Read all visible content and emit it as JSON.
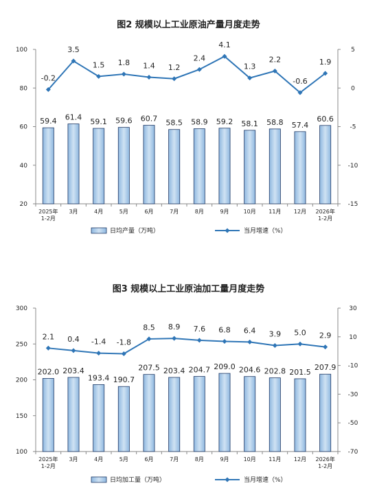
{
  "chart_data": [
    {
      "type": "bar",
      "title": "图2 规模以上工业原油产量月度走势",
      "categories": [
        [
          "2025年",
          "1-2月"
        ],
        [
          "3月"
        ],
        [
          "4月"
        ],
        [
          "5月"
        ],
        [
          "6月"
        ],
        [
          "7月"
        ],
        [
          "8月"
        ],
        [
          "9月"
        ],
        [
          "10月"
        ],
        [
          "11月"
        ],
        [
          "12月"
        ],
        [
          "2026年",
          "1-2月"
        ]
      ],
      "series": [
        {
          "name": "日均产量（万吨）",
          "type": "bar",
          "axis": "left",
          "values": [
            59.4,
            61.4,
            59.1,
            59.6,
            60.7,
            58.5,
            58.9,
            59.2,
            58.1,
            58.8,
            57.4,
            60.6
          ],
          "labels": [
            "59.4",
            "61.4",
            "59.1",
            "59.6",
            "60.7",
            "58.5",
            "58.9",
            "59.2",
            "58.1",
            "58.8",
            "57.4",
            "60.6"
          ]
        },
        {
          "name": "当月增速（%）",
          "type": "line",
          "axis": "right",
          "values": [
            -0.2,
            3.5,
            1.5,
            1.8,
            1.4,
            1.2,
            2.4,
            4.1,
            1.3,
            2.2,
            -0.6,
            1.9
          ],
          "labels": [
            "-0.2",
            "3.5",
            "1.5",
            "1.8",
            "1.4",
            "1.2",
            "2.4",
            "4.1",
            "1.3",
            "2.2",
            "-0.6",
            "1.9"
          ]
        }
      ],
      "ylim_left": [
        20,
        100
      ],
      "yticks_left": [
        "20",
        "40",
        "60",
        "80",
        "100"
      ],
      "ylim_right": [
        -15,
        5
      ],
      "yticks_right": [
        "-15",
        "-10",
        "-5",
        "0",
        "5"
      ],
      "grid": false,
      "legend_position": "bottom"
    },
    {
      "type": "bar",
      "title": "图3 规模以上工业原油加工量月度走势",
      "categories": [
        [
          "2025年",
          "1-2月"
        ],
        [
          "3月"
        ],
        [
          "4月"
        ],
        [
          "5月"
        ],
        [
          "6月"
        ],
        [
          "7月"
        ],
        [
          "8月"
        ],
        [
          "9月"
        ],
        [
          "10月"
        ],
        [
          "11月"
        ],
        [
          "12月"
        ],
        [
          "2026年",
          "1-2月"
        ]
      ],
      "series": [
        {
          "name": "日均加工量（万吨）",
          "type": "bar",
          "axis": "left",
          "values": [
            202.0,
            203.4,
            193.4,
            190.7,
            207.5,
            203.4,
            204.7,
            209.0,
            204.6,
            202.8,
            201.5,
            207.9
          ],
          "labels": [
            "202.0",
            "203.4",
            "193.4",
            "190.7",
            "207.5",
            "203.4",
            "204.7",
            "209.0",
            "204.6",
            "202.8",
            "201.5",
            "207.9"
          ]
        },
        {
          "name": "当月增速（%）",
          "type": "line",
          "axis": "right",
          "values": [
            2.1,
            0.4,
            -1.4,
            -1.8,
            8.5,
            8.9,
            7.6,
            6.8,
            6.4,
            3.9,
            5.0,
            2.9
          ],
          "labels": [
            "2.1",
            "0.4",
            "-1.4",
            "-1.8",
            "8.5",
            "8.9",
            "7.6",
            "6.8",
            "6.4",
            "3.9",
            "5.0",
            "2.9"
          ]
        }
      ],
      "ylim_left": [
        100,
        300
      ],
      "yticks_left": [
        "100",
        "150",
        "200",
        "250",
        "300"
      ],
      "ylim_right": [
        -70,
        30
      ],
      "yticks_right": [
        "-70",
        "-50",
        "-30",
        "-10",
        "10",
        "30"
      ],
      "grid": false,
      "legend_position": "bottom"
    }
  ],
  "colors": {
    "bar_fill": "#9dc3e6",
    "bar_fill_light": "#cfe2f3",
    "bar_stroke": "#1f3864",
    "line": "#2e75b6",
    "axis": "#888888"
  }
}
